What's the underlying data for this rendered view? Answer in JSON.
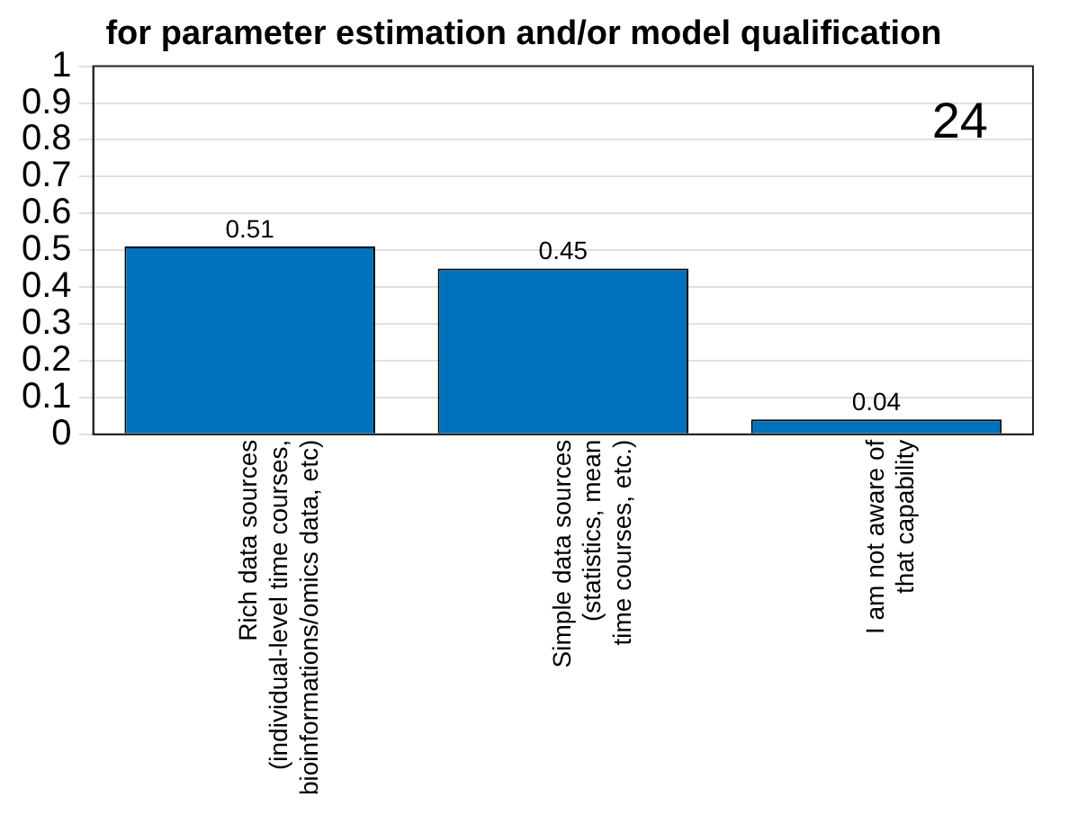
{
  "chart_data": {
    "type": "bar",
    "title": "for parameter estimation and/or model qualification",
    "categories": [
      "Rich data sources\n(individual-level time courses,\nbioinformations/omics data, etc)",
      "Simple data sources\n(statistics, mean\ntime courses, etc.)",
      "I am not aware of\nthat capability"
    ],
    "values": [
      0.51,
      0.45,
      0.04
    ],
    "color": "#0072bd",
    "data_labels": true,
    "ylim": [
      0,
      1
    ],
    "yticks": [
      0,
      0.1,
      0.2,
      0.3,
      0.4,
      0.5,
      0.6,
      0.7,
      0.8,
      0.9,
      1
    ],
    "grid": "y",
    "legend": false,
    "annotations": [
      "24"
    ]
  }
}
